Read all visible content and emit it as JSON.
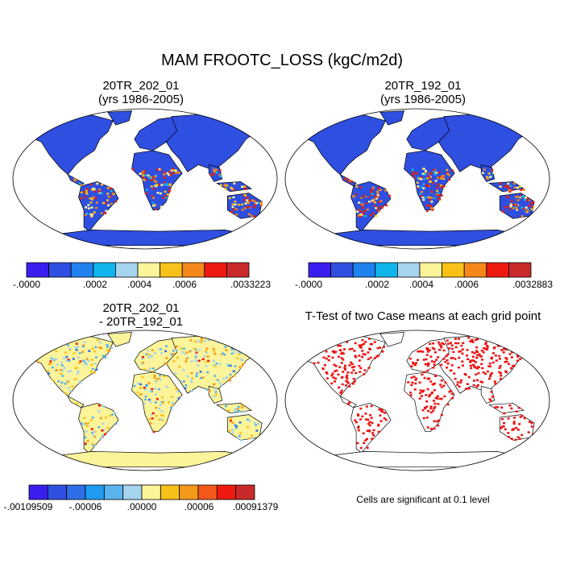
{
  "title": "MAM FROOTC_LOSS (kgC/m2d)",
  "panels": [
    {
      "id": "case1",
      "title_line1": "20TR_202_01",
      "title_line2": "(yrs 1986-2005)"
    },
    {
      "id": "case2",
      "title_line1": "20TR_192_01",
      "title_line2": "(yrs 1986-2005)"
    },
    {
      "id": "diff",
      "title_line1": "20TR_202_01",
      "title_line2": "- 20TR_192_01"
    },
    {
      "id": "ttest",
      "title_line1": "T-Test of two Case means at each grid point",
      "title_line2": ""
    }
  ],
  "colorbars": [
    {
      "id": "cb1",
      "colors": [
        "#3a1ef0",
        "#2f4fe0",
        "#1f82ee",
        "#0fb6ee",
        "#a6d3ee",
        "#fcf49a",
        "#f8c11a",
        "#f4881a",
        "#ee1a10",
        "#c82a2a"
      ],
      "labels": [
        ".0000",
        ".0002",
        ".0004",
        ".0006",
        ".0033223"
      ],
      "label_prefix_first": "-"
    },
    {
      "id": "cb2",
      "colors": [
        "#3a1ef0",
        "#2f4fe0",
        "#1f82ee",
        "#0fb6ee",
        "#a6d3ee",
        "#fcf49a",
        "#f8c11a",
        "#f4881a",
        "#ee1a10",
        "#c82a2a"
      ],
      "labels": [
        ".0000",
        ".0002",
        ".0004",
        ".0006",
        ".0032883"
      ],
      "label_prefix_first": "-"
    },
    {
      "id": "cb3",
      "colors": [
        "#3a1ef0",
        "#2f4fe0",
        "#2e6ee6",
        "#1f9cf0",
        "#5ab4ee",
        "#a6d3ee",
        "#fcf49a",
        "#f8c11a",
        "#f49a1a",
        "#f4581a",
        "#ee1a10",
        "#c82a2a"
      ],
      "labels": [
        "-.00109509",
        "-.00006",
        ".00000",
        ".00006",
        ".00091379"
      ]
    }
  ],
  "significance_note": "Cells are significant at 0.1 level",
  "chart_data": {
    "type": "heatmap",
    "title": "MAM FROOTC_LOSS (kgC/m2d)",
    "units": "kgC/m2d",
    "season": "MAM",
    "variable": "FROOTC_LOSS",
    "maps": [
      {
        "name": "20TR_202_01 (yrs 1986-2005)",
        "min": -0.0,
        "max": 0.0033223,
        "ticks": [
          0,
          0.0002,
          0.0004,
          0.0006,
          0.0033223
        ]
      },
      {
        "name": "20TR_192_01 (yrs 1986-2005)",
        "min": -0.0,
        "max": 0.0032883,
        "ticks": [
          0,
          0.0002,
          0.0004,
          0.0006,
          0.0032883
        ]
      },
      {
        "name": "20TR_202_01 - 20TR_192_01",
        "min": -0.00109509,
        "max": 0.00091379,
        "ticks": [
          -0.00109509,
          -6e-05,
          0.0,
          6e-05,
          0.00091379
        ]
      },
      {
        "name": "T-Test of two Case means at each grid point",
        "significance_level": 0.1
      }
    ]
  }
}
